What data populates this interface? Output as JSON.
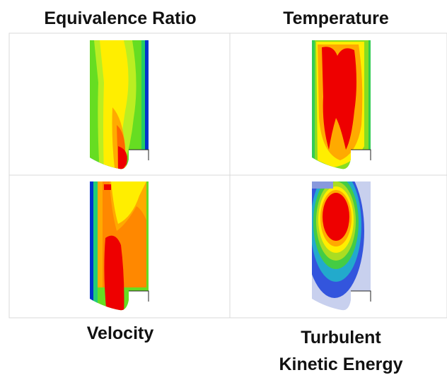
{
  "panels": [
    {
      "label": [
        "Equivalence Ratio"
      ]
    },
    {
      "label": [
        "Temperature"
      ]
    },
    {
      "label": [
        "Velocity"
      ]
    },
    {
      "label": [
        "Turbulent",
        "Kinetic Energy"
      ]
    }
  ]
}
